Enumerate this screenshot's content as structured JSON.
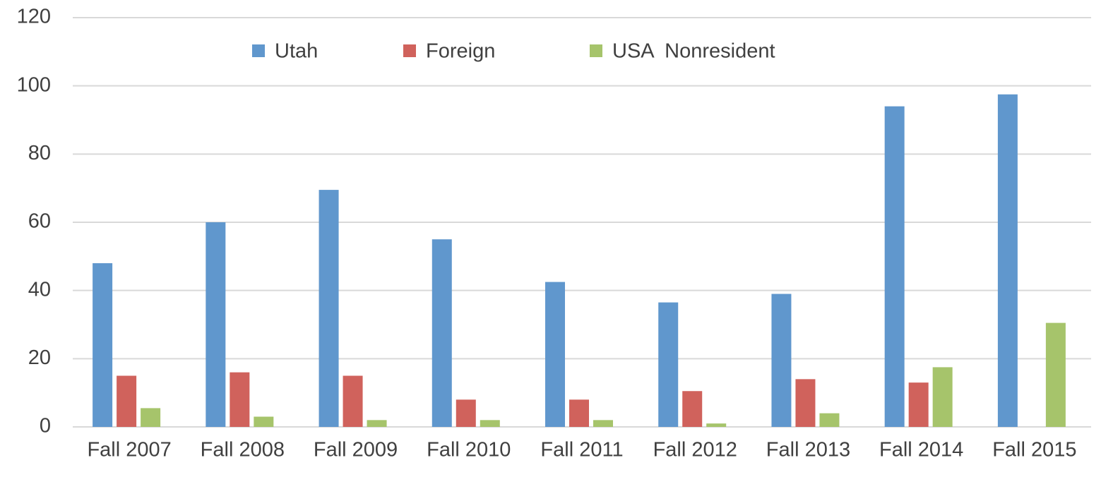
{
  "chart_data": {
    "type": "bar",
    "categories": [
      "Fall 2007",
      "Fall 2008",
      "Fall 2009",
      "Fall 2010",
      "Fall 2011",
      "Fall 2012",
      "Fall 2013",
      "Fall 2014",
      "Fall 2015"
    ],
    "series": [
      {
        "name": "Utah",
        "color": "#6097cd",
        "values": [
          48,
          60,
          69.5,
          55,
          42.5,
          36.5,
          39,
          94,
          97.5
        ]
      },
      {
        "name": "Foreign",
        "color": "#d0625c",
        "values": [
          15,
          16,
          15,
          8,
          8,
          10.5,
          14,
          13,
          null
        ]
      },
      {
        "name": "USA  Nonresident",
        "color": "#a6c46b",
        "values": [
          5.5,
          3,
          2,
          2,
          2,
          1,
          4,
          17.5,
          30.5
        ]
      }
    ],
    "ylim": [
      0,
      120
    ],
    "yticks": [
      0,
      20,
      40,
      60,
      80,
      100,
      120
    ],
    "grid": true,
    "legend": "top"
  }
}
